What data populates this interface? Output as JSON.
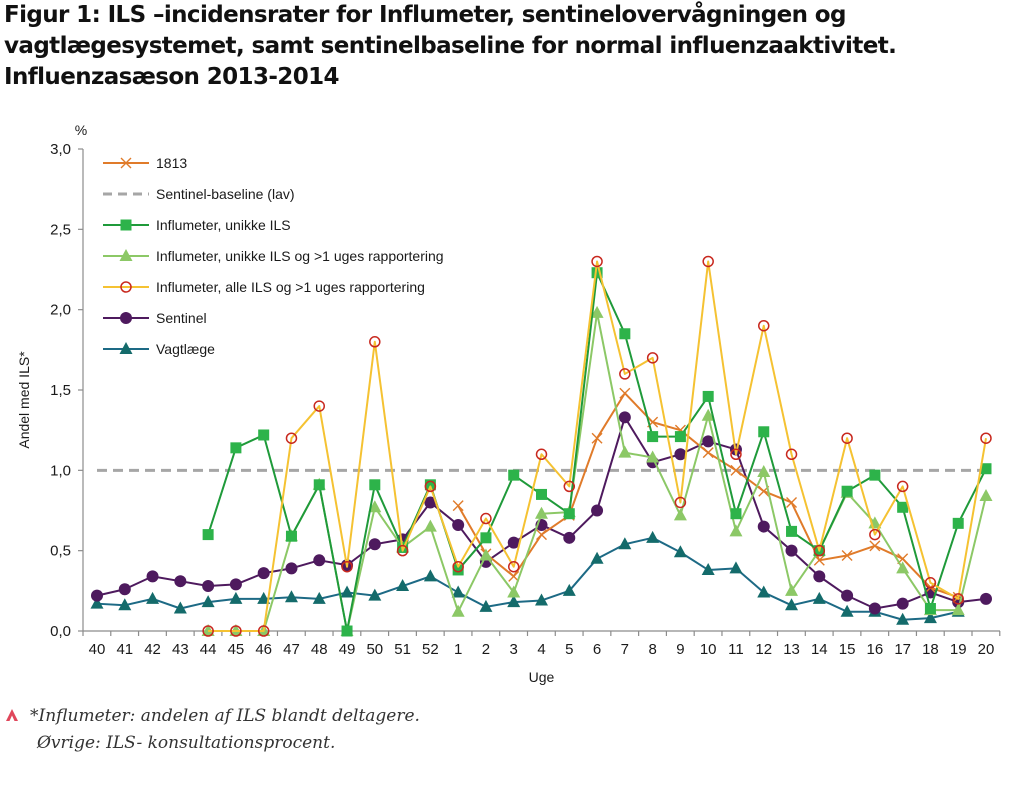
{
  "figure": {
    "title": "Figur 1: ILS –incidensrater for Influmeter, sentinelovervågningen og vagtlægesystemet, samt sentinelbaseline for normal influenzaaktivitet. Influenzasæson 2013-2014",
    "footnote_icon": "caret-up-icon",
    "footnote_line1": "*Influmeter: andelen af ILS blandt deltagere.",
    "footnote_line2": "Øvrige: ILS- konsultationsprocent.",
    "accent_color": "#e0475b"
  },
  "chart_data": {
    "type": "line",
    "title": "",
    "xlabel": "Uge",
    "ylabel": "Andel med ILS*",
    "yunit": "%",
    "ylim": [
      0,
      3.0
    ],
    "yticks": [
      "0,0",
      "0,5",
      "1,0",
      "1,5",
      "2,0",
      "2,5",
      "3,0"
    ],
    "ytick_values": [
      0,
      0.5,
      1.0,
      1.5,
      2.0,
      2.5,
      3.0
    ],
    "grid": false,
    "legend_position": "top-left",
    "x": [
      "40",
      "41",
      "42",
      "43",
      "44",
      "45",
      "46",
      "47",
      "48",
      "49",
      "50",
      "51",
      "52",
      "1",
      "2",
      "3",
      "4",
      "5",
      "6",
      "7",
      "8",
      "9",
      "10",
      "11",
      "12",
      "13",
      "14",
      "15",
      "16",
      "17",
      "18",
      "19",
      "20"
    ],
    "series": [
      {
        "name": "1813",
        "color": "#e07b2a",
        "marker": "x",
        "dashed": false,
        "values": [
          null,
          null,
          null,
          null,
          null,
          null,
          null,
          null,
          null,
          null,
          null,
          null,
          null,
          0.78,
          0.48,
          0.34,
          0.6,
          0.72,
          1.2,
          1.48,
          1.3,
          1.25,
          1.11,
          1.0,
          0.87,
          0.8,
          0.44,
          0.47,
          0.53,
          0.45,
          0.27,
          0.21,
          null
        ]
      },
      {
        "name": "Sentinel-baseline (lav)",
        "color": "#a6a6a6",
        "marker": "none",
        "dashed": true,
        "values": [
          1.0,
          1.0,
          1.0,
          1.0,
          1.0,
          1.0,
          1.0,
          1.0,
          1.0,
          1.0,
          1.0,
          1.0,
          1.0,
          1.0,
          1.0,
          1.0,
          1.0,
          1.0,
          1.0,
          1.0,
          1.0,
          1.0,
          1.0,
          1.0,
          1.0,
          1.0,
          1.0,
          1.0,
          1.0,
          1.0,
          1.0,
          1.0,
          1.0
        ]
      },
      {
        "name": "Influmeter, unikke ILS",
        "color": "#1f9a3a",
        "marker_color": "#2db34a",
        "marker": "square",
        "dashed": false,
        "values": [
          null,
          null,
          null,
          null,
          0.6,
          1.14,
          1.22,
          0.59,
          0.91,
          0.0,
          0.91,
          0.52,
          0.91,
          0.38,
          0.58,
          0.97,
          0.85,
          0.73,
          2.23,
          1.85,
          1.21,
          1.21,
          1.46,
          0.73,
          1.24,
          0.62,
          0.5,
          0.87,
          0.97,
          0.77,
          0.14,
          0.67,
          1.01
        ]
      },
      {
        "name": "Influmeter, unikke ILS og >1 uges rapportering",
        "color": "#8cc866",
        "marker_color": "#8cc866",
        "marker": "triangle",
        "dashed": false,
        "values": [
          null,
          null,
          null,
          null,
          0.0,
          0.0,
          0.0,
          0.59,
          0.91,
          0.0,
          0.77,
          0.52,
          0.65,
          0.12,
          0.47,
          0.24,
          0.73,
          0.74,
          1.98,
          1.11,
          1.08,
          0.72,
          1.34,
          0.62,
          0.99,
          0.25,
          0.5,
          0.86,
          0.67,
          0.39,
          0.13,
          0.13,
          0.84
        ]
      },
      {
        "name": "Influmeter, alle ILS og >1 uges rapportering",
        "color": "#f5c232",
        "marker_color": "#c8281e",
        "marker": "open-circle",
        "dashed": false,
        "values": [
          null,
          null,
          null,
          null,
          0.0,
          0.0,
          0.0,
          1.2,
          1.4,
          0.4,
          1.8,
          0.5,
          0.9,
          0.4,
          0.7,
          0.4,
          1.1,
          0.9,
          2.3,
          1.6,
          1.7,
          0.8,
          2.3,
          1.1,
          1.9,
          1.1,
          0.5,
          1.2,
          0.6,
          0.9,
          0.3,
          0.2,
          1.2
        ]
      },
      {
        "name": "Sentinel",
        "color": "#4e1a5e",
        "marker_color": "#4e1a5e",
        "marker": "circle",
        "dashed": false,
        "values": [
          0.22,
          0.26,
          0.34,
          0.31,
          0.28,
          0.29,
          0.36,
          0.39,
          0.44,
          0.41,
          0.54,
          0.57,
          0.8,
          0.66,
          0.43,
          0.55,
          0.66,
          0.58,
          0.75,
          1.33,
          1.05,
          1.1,
          1.18,
          1.13,
          0.65,
          0.5,
          0.34,
          0.22,
          0.14,
          0.17,
          0.24,
          0.18,
          0.2
        ]
      },
      {
        "name": "Vagtlæge",
        "color": "#1d6a85",
        "marker_color": "#146b6b",
        "marker": "triangle",
        "dashed": false,
        "values": [
          0.17,
          0.16,
          0.2,
          0.14,
          0.18,
          0.2,
          0.2,
          0.21,
          0.2,
          0.24,
          0.22,
          0.28,
          0.34,
          0.24,
          0.15,
          0.18,
          0.19,
          0.25,
          0.45,
          0.54,
          0.58,
          0.49,
          0.38,
          0.39,
          0.24,
          0.16,
          0.2,
          0.12,
          0.12,
          0.07,
          0.08,
          0.12,
          null
        ]
      }
    ]
  }
}
